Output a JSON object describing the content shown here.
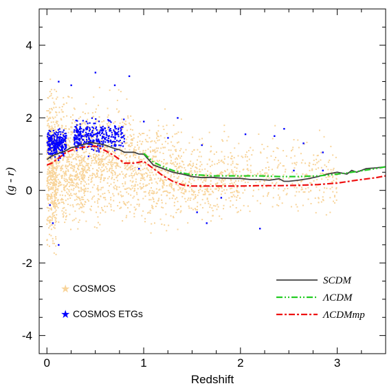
{
  "chart_data": {
    "type": "scatter",
    "xlabel": "Redshift",
    "ylabel": "(g - r)",
    "xlim": [
      -0.08,
      3.5
    ],
    "ylim": [
      -4.5,
      5.0
    ],
    "x_ticks": [
      0,
      1,
      2,
      3
    ],
    "y_ticks": [
      4,
      2,
      0,
      -2,
      -4
    ],
    "x_tick_labels": [
      "0",
      "1",
      "2",
      "3"
    ],
    "y_tick_labels": [
      "4",
      "2",
      "0",
      "-2",
      "-4"
    ],
    "grid": false,
    "legend_points": {
      "placement": "bottom-left",
      "entries": [
        {
          "name": "COSMOS",
          "color": "#f8d49a"
        },
        {
          "name": "COSMOS ETGs",
          "color": "#0000ff"
        }
      ]
    },
    "legend_lines": {
      "placement": "bottom-right",
      "entries": [
        {
          "name": "SCDM",
          "color": "#404040",
          "style": "solid"
        },
        {
          "name": "ΛCDM",
          "color": "#22cc22",
          "style": "dash-dot-dot"
        },
        {
          "name": "ΛCDMmp",
          "color": "#ee1111",
          "style": "dash-dot"
        }
      ]
    },
    "scatter_regions": {
      "cosmos": [
        {
          "z_range": [
            0.0,
            0.1
          ],
          "y_center": 0.6,
          "y_spread": 1.6,
          "count": 500
        },
        {
          "z_range": [
            0.1,
            0.4
          ],
          "y_center": 0.7,
          "y_spread": 1.3,
          "count": 550
        },
        {
          "z_range": [
            0.4,
            0.9
          ],
          "y_center": 0.8,
          "y_spread": 1.2,
          "count": 600
        },
        {
          "z_range": [
            0.9,
            1.4
          ],
          "y_center": 0.5,
          "y_spread": 1.1,
          "count": 450
        },
        {
          "z_range": [
            1.4,
            2.0
          ],
          "y_center": 0.3,
          "y_spread": 0.9,
          "count": 350
        },
        {
          "z_range": [
            2.0,
            3.0
          ],
          "y_center": 0.4,
          "y_spread": 0.8,
          "count": 300
        }
      ],
      "etg": [
        {
          "z_range": [
            0.0,
            0.2
          ],
          "y_center": 1.3,
          "y_spread": 0.3,
          "count": 260
        },
        {
          "z_range": [
            0.28,
            0.36
          ],
          "y_center": 1.5,
          "y_spread": 0.3,
          "count": 90
        },
        {
          "z_range": [
            0.36,
            0.8
          ],
          "y_center": 1.5,
          "y_spread": 0.35,
          "count": 240
        }
      ],
      "etg_outliers": [
        {
          "x": 0.12,
          "y": 3.0
        },
        {
          "x": 0.25,
          "y": 2.9
        },
        {
          "x": 0.5,
          "y": 3.25
        },
        {
          "x": 0.7,
          "y": 2.9
        },
        {
          "x": 0.85,
          "y": 3.15
        },
        {
          "x": 0.06,
          "y": -0.9
        },
        {
          "x": 0.12,
          "y": -1.5
        },
        {
          "x": 0.03,
          "y": -0.4
        },
        {
          "x": 1.35,
          "y": 2.0
        },
        {
          "x": 1.55,
          "y": -0.6
        },
        {
          "x": 1.6,
          "y": 1.25
        },
        {
          "x": 1.65,
          "y": -0.9
        },
        {
          "x": 1.8,
          "y": -0.2
        },
        {
          "x": 2.05,
          "y": 1.55
        },
        {
          "x": 2.2,
          "y": -1.05
        },
        {
          "x": 2.35,
          "y": 1.5
        },
        {
          "x": 2.45,
          "y": 1.7
        },
        {
          "x": 2.55,
          "y": 0.55
        },
        {
          "x": 2.65,
          "y": 1.3
        },
        {
          "x": 2.85,
          "y": 1.05
        },
        {
          "x": 2.85,
          "y": 0.55
        },
        {
          "x": 1.25,
          "y": 1.45
        },
        {
          "x": 1.0,
          "y": 1.9
        },
        {
          "x": 0.95,
          "y": 0.6
        }
      ]
    },
    "series": [
      {
        "name": "SCDM",
        "x": [
          0,
          0.05,
          0.1,
          0.15,
          0.2,
          0.25,
          0.3,
          0.35,
          0.4,
          0.45,
          0.5,
          0.55,
          0.6,
          0.65,
          0.7,
          0.75,
          0.8,
          0.85,
          0.9,
          0.95,
          1.0,
          1.05,
          1.1,
          1.2,
          1.3,
          1.4,
          1.5,
          1.6,
          1.7,
          1.8,
          1.9,
          2.0,
          2.1,
          2.2,
          2.3,
          2.4,
          2.45,
          2.5,
          2.6,
          2.7,
          2.8,
          2.9,
          3.0,
          3.1,
          3.15,
          3.2,
          3.3,
          3.4,
          3.5
        ],
        "y": [
          0.85,
          0.95,
          1.0,
          1.05,
          1.1,
          1.18,
          1.2,
          1.25,
          1.28,
          1.32,
          1.3,
          1.28,
          1.25,
          1.2,
          1.15,
          1.12,
          1.05,
          1.05,
          1.05,
          1.0,
          1.0,
          0.85,
          0.7,
          0.6,
          0.5,
          0.45,
          0.38,
          0.35,
          0.36,
          0.34,
          0.33,
          0.33,
          0.3,
          0.3,
          0.28,
          0.32,
          0.25,
          0.25,
          0.28,
          0.32,
          0.38,
          0.45,
          0.5,
          0.45,
          0.55,
          0.5,
          0.6,
          0.62,
          0.65
        ]
      },
      {
        "name": "ΛCDM",
        "x": [
          1.0,
          1.05,
          1.1,
          1.2,
          1.3,
          1.4,
          1.5,
          1.6,
          1.7,
          1.8,
          1.9,
          2.0,
          2.1,
          2.2,
          2.3,
          2.4,
          2.5,
          2.6,
          2.7,
          2.8,
          2.9,
          3.0,
          3.1,
          3.2,
          3.3,
          3.4,
          3.5
        ],
        "y": [
          1.02,
          0.9,
          0.78,
          0.65,
          0.55,
          0.48,
          0.43,
          0.42,
          0.4,
          0.4,
          0.4,
          0.4,
          0.4,
          0.4,
          0.39,
          0.38,
          0.38,
          0.38,
          0.39,
          0.4,
          0.42,
          0.45,
          0.48,
          0.52,
          0.56,
          0.6,
          0.65
        ]
      },
      {
        "name": "ΛCDMmp",
        "x": [
          0,
          0.05,
          0.1,
          0.15,
          0.2,
          0.3,
          0.4,
          0.5,
          0.6,
          0.7,
          0.8,
          0.9,
          1.0,
          1.1,
          1.2,
          1.3,
          1.4,
          1.5,
          1.6,
          1.7,
          1.8,
          1.9,
          2.0,
          2.2,
          2.4,
          2.6,
          2.8,
          3.0,
          3.2,
          3.4,
          3.5
        ],
        "y": [
          0.7,
          0.75,
          0.85,
          0.95,
          1.05,
          1.15,
          1.2,
          1.22,
          1.1,
          0.95,
          0.75,
          0.75,
          0.8,
          0.6,
          0.4,
          0.25,
          0.15,
          0.12,
          0.12,
          0.12,
          0.12,
          0.12,
          0.12,
          0.13,
          0.13,
          0.14,
          0.16,
          0.2,
          0.28,
          0.35,
          0.4
        ]
      }
    ]
  }
}
